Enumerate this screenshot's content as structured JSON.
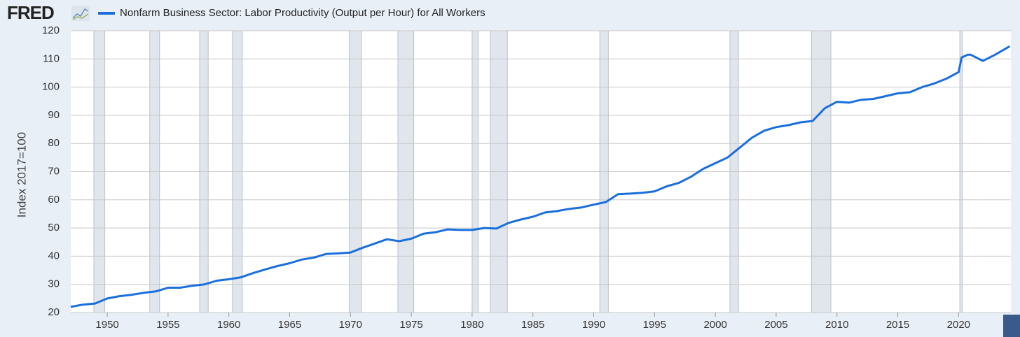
{
  "logo": "FRED",
  "chart_data": {
    "type": "line",
    "y_label": "Index 2017=100",
    "x": [
      1947,
      1948,
      1949,
      1950,
      1951,
      1952,
      1953,
      1954,
      1955,
      1956,
      1957,
      1958,
      1959,
      1960,
      1961,
      1962,
      1963,
      1964,
      1965,
      1966,
      1967,
      1968,
      1969,
      1970,
      1971,
      1972,
      1973,
      1974,
      1975,
      1976,
      1977,
      1978,
      1979,
      1980,
      1981,
      1982,
      1983,
      1984,
      1985,
      1986,
      1987,
      1988,
      1989,
      1990,
      1991,
      1992,
      1993,
      1994,
      1995,
      1996,
      1997,
      1998,
      1999,
      2000,
      2001,
      2002,
      2003,
      2004,
      2005,
      2006,
      2007,
      2008,
      2009,
      2010,
      2011,
      2012,
      2013,
      2014,
      2015,
      2016,
      2017,
      2018,
      2019,
      2020,
      2020.25,
      2020.75,
      2021,
      2022,
      2023,
      2024.2
    ],
    "series": [
      {
        "name": "Nonfarm Business Sector: Labor Productivity (Output per Hour) for All Workers",
        "color": "#1a6fdd",
        "values": [
          22.0,
          22.8,
          23.2,
          25.0,
          25.8,
          26.3,
          27.0,
          27.5,
          28.8,
          28.8,
          29.5,
          30.0,
          31.3,
          31.8,
          32.5,
          34.0,
          35.3,
          36.5,
          37.5,
          38.8,
          39.5,
          40.8,
          41.0,
          41.3,
          43.0,
          44.5,
          46.0,
          45.3,
          46.2,
          48.0,
          48.5,
          49.5,
          49.3,
          49.3,
          50.0,
          49.8,
          51.8,
          53.0,
          54.0,
          55.5,
          56.0,
          56.8,
          57.3,
          58.3,
          59.2,
          62.0,
          62.2,
          62.5,
          63.0,
          64.8,
          66.0,
          68.2,
          71.0,
          73.0,
          75.0,
          78.5,
          82.0,
          84.5,
          85.8,
          86.5,
          87.5,
          88.0,
          92.5,
          94.8,
          94.5,
          95.5,
          95.8,
          96.8,
          97.8,
          98.2,
          100.0,
          101.3,
          103.0,
          105.3,
          110.5,
          111.5,
          111.5,
          109.3,
          111.5,
          114.5
        ]
      }
    ],
    "recessions": [
      [
        1948.9,
        1949.8
      ],
      [
        1953.5,
        1954.3
      ],
      [
        1957.6,
        1958.3
      ],
      [
        1960.3,
        1961.1
      ],
      [
        1969.9,
        1970.9
      ],
      [
        1973.9,
        1975.2
      ],
      [
        1980.0,
        1980.5
      ],
      [
        1981.5,
        1982.9
      ],
      [
        1990.5,
        1991.2
      ],
      [
        2001.2,
        2001.9
      ],
      [
        2007.9,
        2009.5
      ],
      [
        2020.1,
        2020.3
      ]
    ],
    "xlim": [
      1947,
      2024.3
    ],
    "ylim": [
      20,
      120
    ],
    "xticks": [
      1950,
      1955,
      1960,
      1965,
      1970,
      1975,
      1980,
      1985,
      1990,
      1995,
      2000,
      2005,
      2010,
      2015,
      2020
    ],
    "yticks": [
      20,
      30,
      40,
      50,
      60,
      70,
      80,
      90,
      100,
      110,
      120
    ],
    "grid": true
  }
}
